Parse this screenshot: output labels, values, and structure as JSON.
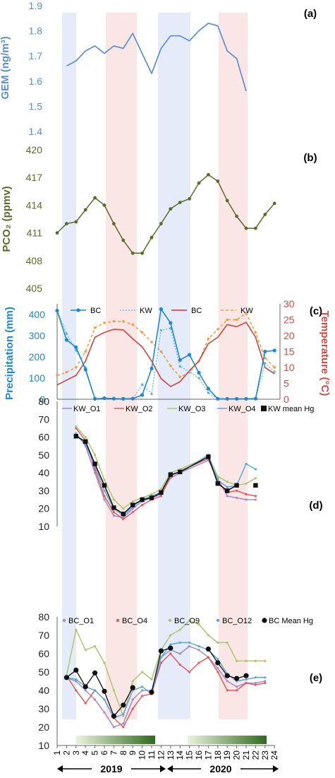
{
  "panels": {
    "a": {
      "label": "(a)",
      "ylabel": "GEM (ng/m³)"
    },
    "b": {
      "label": "(b)",
      "ylabel": "PCO₂ (ppmv)"
    },
    "c": {
      "label": "(c)",
      "ylabel_left": "Precipitation (mm)",
      "ylabel_right": "Temperature (°C)"
    },
    "d": {
      "label": "(d)"
    },
    "e": {
      "label": "(e)"
    }
  },
  "years": {
    "first": "2019",
    "second": "2020"
  },
  "colors": {
    "gem": "#5b8fce",
    "pco2": "#5a6b2b",
    "precip": "#1e88d0",
    "temp": "#d14b47",
    "kw_temp": "#f0a040",
    "o1": "#a08cc8",
    "o2": "#e25c5c",
    "o3": "#a8c870",
    "o4": "#5aa8dc",
    "blueShade": "#e6ebfa",
    "redShade": "#fbe6e6"
  },
  "chart_data": [
    {
      "type": "line",
      "panel": "a",
      "x": [
        1,
        2,
        3,
        4,
        5,
        6,
        7,
        8,
        9,
        10,
        11,
        12,
        13,
        14,
        15,
        16,
        17,
        18,
        19,
        20,
        21
      ],
      "series": [
        {
          "values": [
            null,
            1.66,
            1.68,
            1.72,
            1.74,
            1.71,
            1.74,
            1.73,
            1.79,
            1.71,
            1.63,
            1.73,
            1.78,
            1.78,
            1.76,
            1.8,
            1.83,
            1.82,
            1.72,
            1.69,
            1.56
          ]
        }
      ],
      "ylabel": "GEM (ng/m³)",
      "ylim": [
        1.4,
        1.9
      ],
      "yticks": [
        "1.4",
        "1.5",
        "1.6",
        "1.7",
        "1.8",
        "1.9"
      ]
    },
    {
      "type": "line",
      "panel": "b",
      "x": [
        1,
        2,
        3,
        4,
        5,
        6,
        7,
        8,
        9,
        10,
        11,
        12,
        13,
        14,
        15,
        16,
        17,
        18,
        19,
        20,
        21,
        22,
        23,
        24
      ],
      "series": [
        {
          "values": [
            411.0,
            412.0,
            412.2,
            413.5,
            414.8,
            414.0,
            412.0,
            410.2,
            408.8,
            408.8,
            410.5,
            412.0,
            413.6,
            414.3,
            414.7,
            416.4,
            417.3,
            416.6,
            414.5,
            412.8,
            411.5,
            411.5,
            413.0,
            414.2
          ]
        }
      ],
      "ylabel": "PCO₂ (ppmv)",
      "ylim": [
        405,
        420
      ],
      "yticks": [
        "405",
        "408",
        "411",
        "414",
        "417",
        "420"
      ]
    },
    {
      "type": "line",
      "panel": "c",
      "x": [
        1,
        2,
        3,
        4,
        5,
        6,
        7,
        8,
        9,
        10,
        11,
        12,
        13,
        14,
        15,
        16,
        17,
        18,
        19,
        20,
        21,
        22,
        23,
        24
      ],
      "series": [
        {
          "name": "BC",
          "axis": "left",
          "values": [
            418,
            280,
            245,
            140,
            2,
            5,
            3,
            2,
            3,
            20,
            145,
            425,
            360,
            185,
            210,
            125,
            50,
            2,
            2,
            2,
            2,
            3,
            225,
            230
          ]
        },
        {
          "name": "KW",
          "axis": "left",
          "values": [
            420,
            310,
            230,
            150,
            2,
            3,
            2,
            2,
            2,
            70,
            25,
            325,
            335,
            155,
            130,
            100,
            30,
            2,
            2,
            2,
            2,
            3,
            170,
            130
          ]
        },
        {
          "name": "BC",
          "axis": "right",
          "values": [
            4.5,
            6,
            7.5,
            12,
            19.5,
            21,
            22,
            21.8,
            19,
            16.5,
            12,
            6.5,
            4,
            5.5,
            9,
            12,
            17.5,
            19.5,
            23.5,
            22.8,
            24.2,
            19.5,
            10,
            8
          ]
        },
        {
          "name": "KW",
          "axis": "right",
          "values": [
            7.5,
            8.5,
            10,
            15,
            22.5,
            24,
            24.5,
            24.5,
            23.5,
            21,
            18,
            15,
            10.5,
            7,
            8.5,
            12,
            19,
            22,
            25,
            25,
            27,
            21,
            13,
            10
          ]
        }
      ],
      "ylabel_left": "Precipitation (mm)",
      "ylim_left": [
        0,
        450
      ],
      "yticks_left": [
        "0",
        "100",
        "200",
        "300",
        "400"
      ],
      "ylabel_right": "Temperature (°C)",
      "ylim_right": [
        0,
        30
      ],
      "yticks_right": [
        "0",
        "5",
        "10",
        "15",
        "20",
        "25",
        "30"
      ],
      "legend": "top"
    },
    {
      "type": "line",
      "panel": "d",
      "x": [
        3,
        4,
        5,
        6,
        7,
        8,
        9,
        10,
        11,
        12,
        13,
        14,
        17,
        18,
        19,
        20,
        21,
        22
      ],
      "series": [
        {
          "name": "KW_O1",
          "values": [
            62,
            55,
            40,
            25,
            16,
            15,
            20,
            24,
            26,
            28,
            37,
            40,
            47,
            37,
            27,
            26,
            25,
            25
          ]
        },
        {
          "name": "KW_O2",
          "values": [
            65,
            58,
            42,
            27,
            18,
            14,
            18,
            22,
            25,
            27,
            38,
            41,
            48,
            35,
            29,
            30,
            28,
            27
          ]
        },
        {
          "name": "KW_O3",
          "values": [
            66,
            60,
            50,
            36,
            25,
            20,
            24,
            26,
            28,
            31,
            40,
            42,
            49,
            38,
            35,
            33,
            34,
            37
          ]
        },
        {
          "name": "KW_O4",
          "values": [
            62,
            56,
            44,
            30,
            20,
            16,
            21,
            25,
            27,
            29,
            39,
            40,
            50,
            36,
            32,
            33,
            45,
            42
          ]
        },
        {
          "name": "KW mean Hg",
          "values": [
            60.5,
            57.5,
            45,
            33,
            20.5,
            17,
            22,
            25,
            26,
            29,
            39,
            40.5,
            49,
            34,
            30,
            33,
            null,
            33
          ]
        }
      ],
      "ylim": [
        10,
        80
      ],
      "yticks": [
        "10",
        "20",
        "30",
        "40",
        "50",
        "60",
        "70",
        "80"
      ],
      "legend": "top"
    },
    {
      "type": "line",
      "panel": "e",
      "x": [
        2,
        3,
        4,
        5,
        6,
        7,
        8,
        9,
        10,
        11,
        12,
        13,
        14,
        15,
        16,
        17,
        18,
        19,
        20,
        21,
        22,
        23
      ],
      "series": [
        {
          "name": "BC_O1",
          "values": [
            47,
            45,
            40,
            35,
            28,
            20,
            22,
            35,
            40,
            40,
            58,
            62,
            60,
            64,
            62,
            58,
            52,
            45,
            42,
            44,
            44,
            45
          ]
        },
        {
          "name": "BC_O4",
          "values": [
            48,
            40,
            33,
            40,
            35,
            25,
            20,
            30,
            37,
            38,
            55,
            60,
            54,
            50,
            55,
            58,
            50,
            40,
            40,
            44,
            43,
            44
          ]
        },
        {
          "name": "BC_O9",
          "values": [
            48,
            73,
            62,
            64,
            55,
            40,
            26,
            45,
            50,
            46,
            62,
            70,
            73,
            78,
            76,
            70,
            66,
            66,
            56,
            56,
            56,
            56
          ]
        },
        {
          "name": "BC_O12",
          "values": [
            47,
            46,
            42,
            40,
            35,
            25,
            27,
            40,
            42,
            38,
            58,
            65,
            66,
            66,
            64,
            62,
            57,
            49,
            45,
            46,
            47,
            47
          ]
        },
        {
          "name": "BC Mean Hg",
          "values": [
            47,
            51,
            42,
            49.5,
            39.5,
            26,
            32,
            41.5,
            null,
            39,
            61.5,
            63,
            null,
            null,
            null,
            62.5,
            55,
            48,
            46.5,
            48,
            null,
            null
          ]
        }
      ],
      "ylim": [
        10,
        80
      ],
      "yticks": [
        "10",
        "20",
        "30",
        "40",
        "50",
        "60",
        "70",
        "80"
      ],
      "xlabels": [
        "1",
        "2",
        "3",
        "4",
        "5",
        "6",
        "7",
        "8",
        "9",
        "10",
        "11",
        "12",
        "13",
        "14",
        "15",
        "16",
        "17",
        "18",
        "19",
        "20",
        "21",
        "22",
        "23",
        "24"
      ],
      "legend": "top"
    }
  ]
}
